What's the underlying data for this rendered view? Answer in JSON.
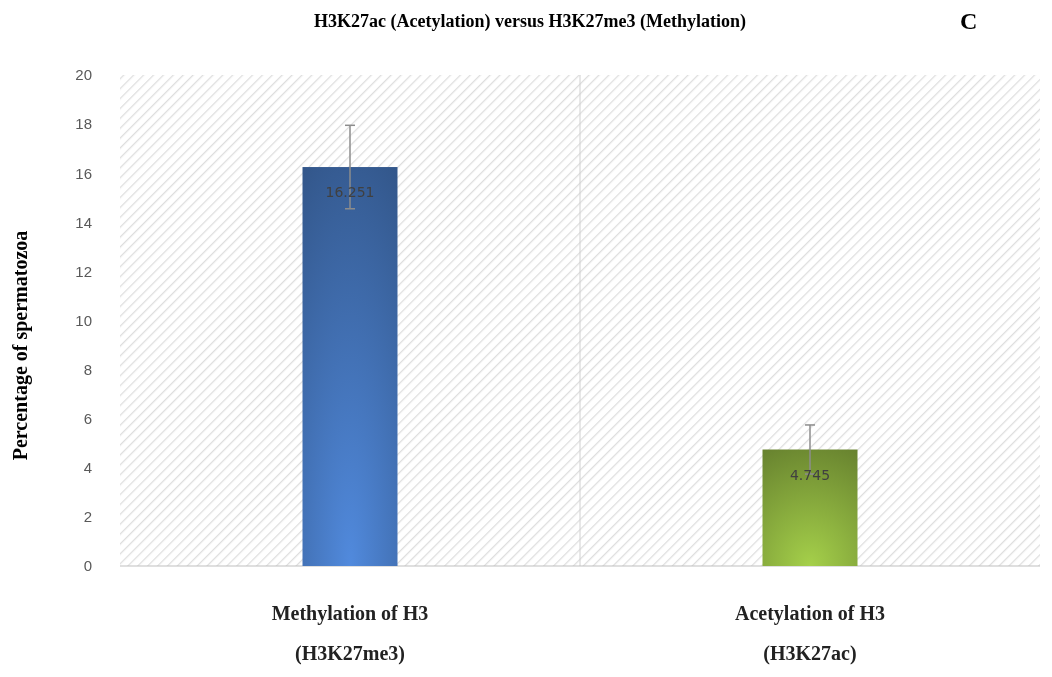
{
  "chart_data": {
    "type": "bar",
    "title": "H3K27ac (Acetylation) versus H3K27me3 (Methylation)",
    "ylabel": "Percentage of spermatozoa",
    "categories": [
      "Methylation of H3\n(H3K27me3)",
      "Acetylation of H3\n(H3K27ac)"
    ],
    "values": [
      16.251,
      4.745
    ],
    "colors": [
      "#3d68a6",
      "#7c9c38"
    ],
    "errors": [
      1.7,
      1.0
    ],
    "data_labels": true,
    "ylim": [
      0,
      20
    ],
    "yticks": [
      0,
      2,
      4,
      6,
      8,
      10,
      12,
      14,
      16,
      18,
      20
    ],
    "grid": false,
    "annotations": [
      "C"
    ]
  }
}
